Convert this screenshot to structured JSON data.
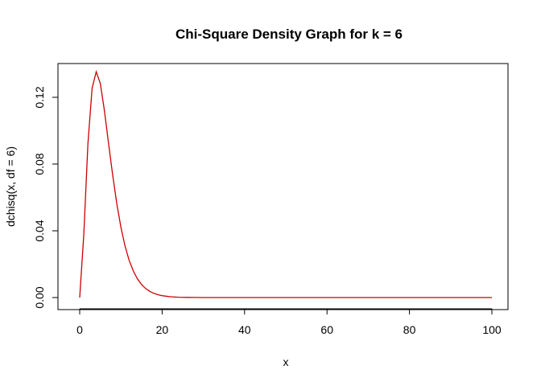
{
  "chart_data": {
    "type": "line",
    "title": "Chi-Square Density Graph for k = 6",
    "xlabel": "x",
    "ylabel": "dchisq(x, df = 6)",
    "xlim": [
      0,
      100
    ],
    "ylim": [
      0,
      0.135
    ],
    "x_ticks": [
      0,
      20,
      40,
      60,
      80,
      100
    ],
    "x_tick_labels": [
      "0",
      "20",
      "40",
      "60",
      "80",
      "100"
    ],
    "y_ticks": [
      0,
      0.04,
      0.08,
      0.12
    ],
    "y_tick_labels": [
      "0.00",
      "0.04",
      "0.08",
      "0.12"
    ],
    "grid": false,
    "line_color": "#cc0000",
    "series": [
      {
        "x": [
          0,
          1,
          2,
          3,
          4,
          5,
          6,
          7,
          8,
          9,
          10,
          11,
          12,
          13,
          14,
          15,
          16,
          17,
          18,
          19,
          20,
          22,
          24,
          26,
          28,
          30,
          35,
          40,
          50,
          60,
          70,
          80,
          90,
          100
        ],
        "values": [
          0,
          0.0379,
          0.092,
          0.1255,
          0.1353,
          0.1283,
          0.112,
          0.0925,
          0.0733,
          0.0562,
          0.0421,
          0.0309,
          0.0223,
          0.0159,
          0.0112,
          0.0078,
          0.0054,
          0.0037,
          0.0025,
          0.0017,
          0.0011,
          0.0005,
          0.0002,
          0.0001,
          5e-05,
          2e-05,
          0,
          0,
          0,
          0,
          0,
          0,
          0,
          0
        ]
      }
    ]
  }
}
